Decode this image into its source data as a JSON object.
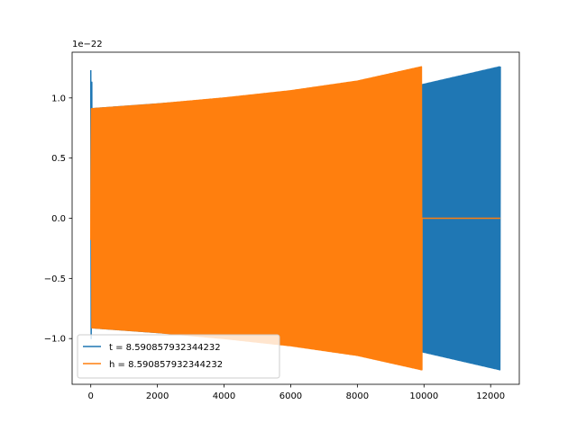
{
  "chart_data": {
    "type": "line",
    "title": "",
    "xlabel": "",
    "ylabel": "",
    "y_offset_label": "1e−22",
    "xlim": [
      -560,
      12860
    ],
    "ylim": [
      -1.38,
      1.38
    ],
    "x_ticks": [
      0,
      2000,
      4000,
      6000,
      8000,
      10000,
      12000
    ],
    "x_tick_labels": [
      "0",
      "2000",
      "4000",
      "6000",
      "8000",
      "10000",
      "12000"
    ],
    "y_ticks": [
      -1.0,
      -0.5,
      0.0,
      0.5,
      1.0
    ],
    "y_tick_labels": [
      "−1.0",
      "−0.5",
      "0.0",
      "0.5",
      "1.0"
    ],
    "grid": false,
    "legend_position": "lower-left",
    "series": [
      {
        "name": "t = 8.590857932344232",
        "color": "#1f77b4",
        "x_range": [
          0,
          12290
        ],
        "start_spike": {
          "x": [
            0,
            12,
            30,
            45
          ],
          "y": [
            1.23,
            -1.0,
            1.13,
            -0.9
          ]
        },
        "envelope": {
          "x": [
            0,
            9940,
            12290
          ],
          "y": [
            0.91,
            1.11,
            1.26
          ]
        }
      },
      {
        "name": "h = 8.590857932344232",
        "color": "#ff7f0e",
        "x_range": [
          0,
          12290
        ],
        "start": {
          "x": 0,
          "y": -0.18
        },
        "envelope": {
          "x": [
            0,
            2000,
            4000,
            6000,
            8000,
            9940
          ],
          "y": [
            0.91,
            0.95,
            1.0,
            1.06,
            1.14,
            1.26
          ]
        },
        "flat_after": {
          "x_from": 9940,
          "x_to": 12290,
          "y": 0.0
        }
      }
    ]
  }
}
